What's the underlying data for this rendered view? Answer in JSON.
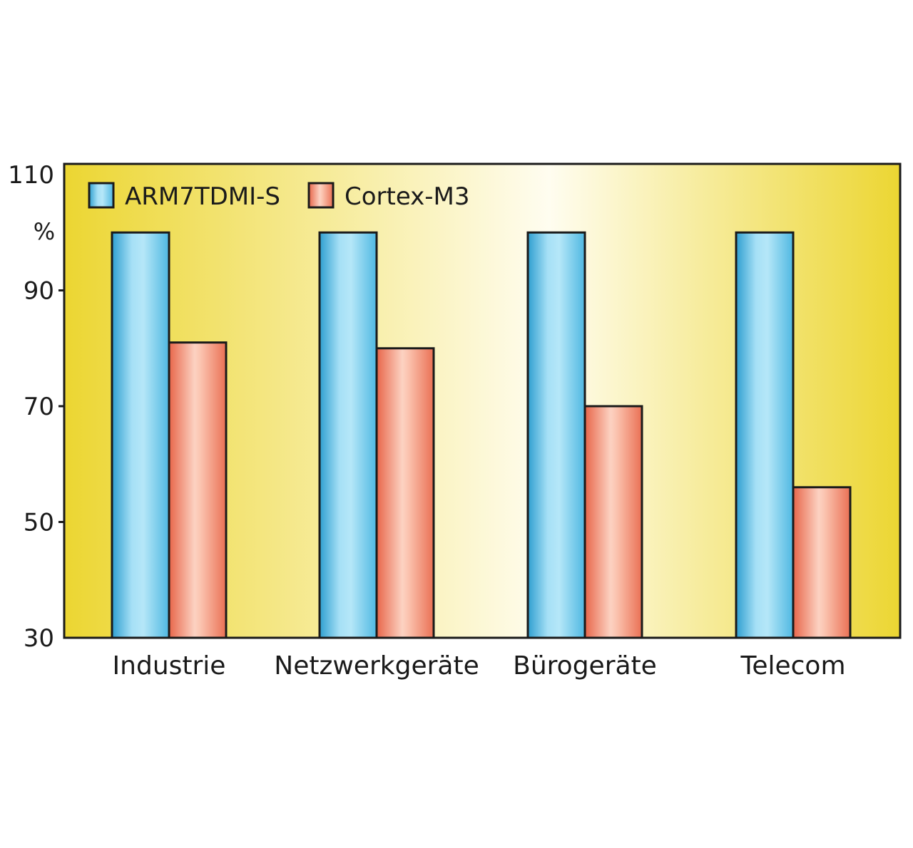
{
  "chart_data": {
    "type": "bar",
    "categories": [
      "Industrie",
      "Netzwerkgeräte",
      "Bürogeräte",
      "Telecom"
    ],
    "series": [
      {
        "name": "ARM7TDMI-S",
        "values": [
          100,
          100,
          100,
          100
        ]
      },
      {
        "name": "Cortex-M3",
        "values": [
          81,
          80,
          70,
          56
        ]
      }
    ],
    "ylim": [
      30,
      110
    ],
    "yticks": [
      30,
      50,
      70,
      90,
      110
    ],
    "ylabel": "%",
    "grid": false,
    "legend_position": "top-left",
    "colors": {
      "ARM7TDMI-S": "#79cdeb",
      "Cortex-M3": "#f08468",
      "background_edge": "#ecd632",
      "background_center": "#fffdf0",
      "frame": "#1a1a1a"
    }
  }
}
